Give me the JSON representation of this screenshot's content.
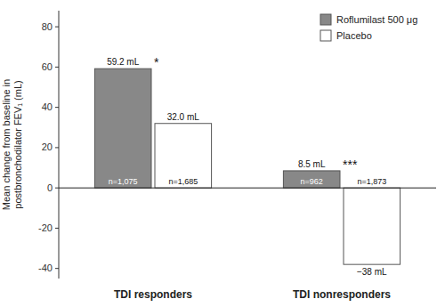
{
  "chart_data": {
    "type": "bar",
    "categories": [
      "TDI responders",
      "TDI nonresponders"
    ],
    "series": [
      {
        "name": "Roflumilast 500 μg",
        "color": "#888888",
        "values": [
          59.2,
          8.5
        ],
        "value_labels": [
          "59.2 mL",
          "8.5 mL"
        ],
        "n_labels": [
          "n=1,075",
          "n=962"
        ],
        "significance": [
          "*",
          "***"
        ]
      },
      {
        "name": "Placebo",
        "color": "#ffffff",
        "values": [
          32.0,
          -38.0
        ],
        "value_labels": [
          "32.0 mL",
          "−38 mL"
        ],
        "n_labels": [
          "n=1,685",
          "n=1,873"
        ]
      }
    ],
    "ylabel": "Mean change from baseline in\npostbronchodilator FEV₁ (mL)",
    "ylim": [
      -45,
      88
    ],
    "yticks": [
      -40,
      -20,
      0,
      20,
      40,
      60,
      80
    ],
    "legend": "upper right",
    "data_labels": true,
    "grid": false
  }
}
